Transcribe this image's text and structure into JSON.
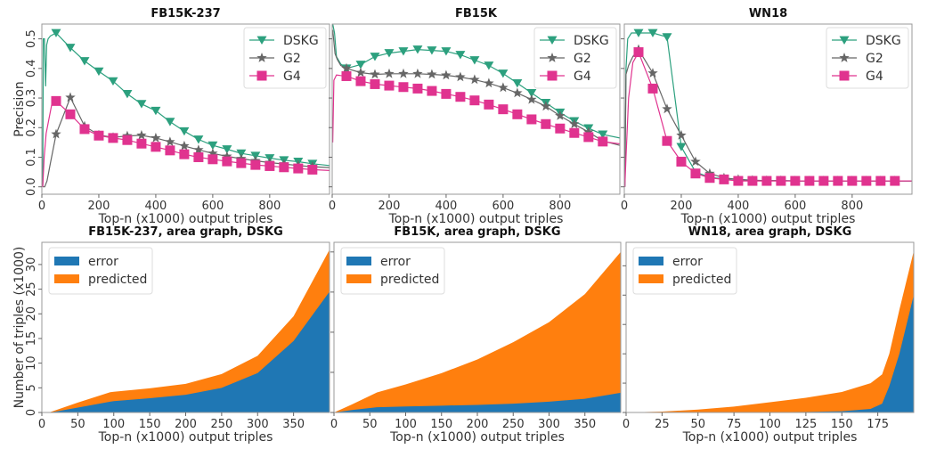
{
  "chart_data": [
    {
      "id": "fb15k237-precision",
      "type": "line",
      "title": "FB15K-237",
      "xlabel": "Top-n (x1000) output triples",
      "ylabel": "Precision",
      "xlim": [
        0,
        1010
      ],
      "ylim": [
        -0.025,
        0.55
      ],
      "xticks": [
        0,
        200,
        400,
        600,
        800
      ],
      "yticks": [
        0.0,
        0.1,
        0.2,
        0.3,
        0.4,
        0.5
      ],
      "show_ytick_labels": true,
      "legend": "top-right",
      "x": [
        50,
        100,
        150,
        200,
        250,
        300,
        350,
        400,
        450,
        500,
        550,
        600,
        650,
        700,
        750,
        800,
        850,
        900,
        950
      ],
      "series": [
        {
          "name": "DSKG",
          "color": "#2ca07e",
          "marker": "triangle-down",
          "lead": [
            [
              3,
              0.0
            ],
            [
              5,
              0.5
            ],
            [
              9,
              0.5
            ],
            [
              13,
              0.34
            ],
            [
              17,
              0.48
            ],
            [
              22,
              0.5
            ],
            [
              30,
              0.51
            ]
          ],
          "values": [
            0.52,
            0.47,
            0.425,
            0.39,
            0.357,
            0.314,
            0.28,
            0.257,
            0.22,
            0.188,
            0.16,
            0.14,
            0.127,
            0.113,
            0.105,
            0.097,
            0.09,
            0.085,
            0.078
          ],
          "tail": 0.072
        },
        {
          "name": "G2",
          "color": "#666666",
          "marker": "star",
          "lead": [
            [
              3,
              0.0
            ],
            [
              10,
              0.0
            ],
            [
              18,
              0.02
            ],
            [
              30,
              0.08
            ]
          ],
          "values": [
            0.178,
            0.302,
            0.205,
            0.175,
            0.167,
            0.172,
            0.174,
            0.165,
            0.152,
            0.138,
            0.125,
            0.113,
            0.103,
            0.095,
            0.088,
            0.082,
            0.077,
            0.072,
            0.068
          ],
          "tail": 0.065
        },
        {
          "name": "G4",
          "color": "#e0338f",
          "marker": "square",
          "lead": [
            [
              3,
              0.0
            ],
            [
              8,
              0.1
            ],
            [
              15,
              0.18
            ],
            [
              25,
              0.23
            ],
            [
              35,
              0.28
            ]
          ],
          "values": [
            0.29,
            0.245,
            0.195,
            0.173,
            0.165,
            0.158,
            0.146,
            0.135,
            0.123,
            0.11,
            0.1,
            0.093,
            0.086,
            0.08,
            0.074,
            0.07,
            0.066,
            0.062,
            0.058
          ],
          "tail": 0.055
        }
      ]
    },
    {
      "id": "fb15k-precision",
      "type": "line",
      "title": "FB15K",
      "xlabel": "Top-n (x1000) output triples",
      "ylabel": "",
      "xlim": [
        0,
        1010
      ],
      "ylim": [
        -0.025,
        0.55
      ],
      "xticks": [
        0,
        200,
        400,
        600,
        800
      ],
      "yticks": [
        0.0,
        0.1,
        0.2,
        0.3,
        0.4,
        0.5
      ],
      "show_ytick_labels": false,
      "legend": "top-right",
      "x": [
        50,
        100,
        150,
        200,
        250,
        300,
        350,
        400,
        450,
        500,
        550,
        600,
        650,
        700,
        750,
        800,
        850,
        900,
        950
      ],
      "series": [
        {
          "name": "DSKG",
          "color": "#2ca07e",
          "marker": "triangle-down",
          "lead": [
            [
              2,
              0.55
            ],
            [
              8,
              0.52
            ],
            [
              15,
              0.44
            ],
            [
              30,
              0.415
            ]
          ],
          "values": [
            0.4,
            0.413,
            0.44,
            0.452,
            0.458,
            0.464,
            0.461,
            0.458,
            0.446,
            0.428,
            0.41,
            0.383,
            0.35,
            0.317,
            0.284,
            0.251,
            0.222,
            0.198,
            0.177
          ],
          "tail": 0.165
        },
        {
          "name": "G2",
          "color": "#666666",
          "marker": "star",
          "lead": [
            [
              2,
              0.53
            ],
            [
              10,
              0.45
            ],
            [
              18,
              0.43
            ],
            [
              30,
              0.41
            ]
          ],
          "values": [
            0.4,
            0.386,
            0.38,
            0.382,
            0.382,
            0.382,
            0.38,
            0.377,
            0.371,
            0.362,
            0.35,
            0.335,
            0.317,
            0.295,
            0.272,
            0.24,
            0.212,
            0.185,
            0.155
          ],
          "tail": 0.14
        },
        {
          "name": "G4",
          "color": "#e0338f",
          "marker": "square",
          "lead": [
            [
              2,
              0.15
            ],
            [
              6,
              0.36
            ],
            [
              15,
              0.378
            ],
            [
              30,
              0.376
            ]
          ],
          "values": [
            0.374,
            0.357,
            0.347,
            0.342,
            0.337,
            0.332,
            0.324,
            0.314,
            0.304,
            0.292,
            0.278,
            0.262,
            0.245,
            0.228,
            0.212,
            0.197,
            0.182,
            0.168,
            0.153
          ],
          "tail": 0.145
        }
      ]
    },
    {
      "id": "wn18-precision",
      "type": "line",
      "title": "WN18",
      "xlabel": "Top-n (x1000) output triples",
      "ylabel": "",
      "xlim": [
        0,
        1010
      ],
      "ylim": [
        -0.025,
        0.55
      ],
      "xticks": [
        0,
        200,
        400,
        600,
        800
      ],
      "yticks": [
        0.0,
        0.1,
        0.2,
        0.3,
        0.4,
        0.5
      ],
      "show_ytick_labels": false,
      "legend": "top-right",
      "x": [
        50,
        100,
        150,
        200,
        250,
        300,
        350,
        400,
        450,
        500,
        550,
        600,
        650,
        700,
        750,
        800,
        850,
        900,
        950
      ],
      "series": [
        {
          "name": "DSKG",
          "color": "#2ca07e",
          "marker": "triangle-down",
          "lead": [
            [
              2,
              0.0
            ],
            [
              6,
              0.4
            ],
            [
              12,
              0.5
            ],
            [
              25,
              0.52
            ]
          ],
          "values": [
            0.52,
            0.52,
            0.506,
            0.135,
            0.05,
            0.032,
            0.027,
            0.025,
            0.022,
            0.021,
            0.021,
            0.02,
            0.02,
            0.02,
            0.02,
            0.02,
            0.02,
            0.02,
            0.02
          ],
          "tail": 0.02,
          "marker_count": 4
        },
        {
          "name": "G2",
          "color": "#666666",
          "marker": "star",
          "lead": [
            [
              2,
              0.0
            ],
            [
              6,
              0.38
            ],
            [
              15,
              0.41
            ],
            [
              30,
              0.44
            ]
          ],
          "values": [
            0.464,
            0.384,
            0.263,
            0.174,
            0.085,
            0.045,
            0.03,
            0.025,
            0.022,
            0.021,
            0.021,
            0.02,
            0.02,
            0.02,
            0.02,
            0.02,
            0.02,
            0.02,
            0.02
          ],
          "tail": 0.02
        },
        {
          "name": "G4",
          "color": "#e0338f",
          "marker": "square",
          "lead": [
            [
              2,
              0.0
            ],
            [
              6,
              0.1
            ],
            [
              15,
              0.3
            ],
            [
              30,
              0.42
            ]
          ],
          "values": [
            0.455,
            0.332,
            0.155,
            0.085,
            0.045,
            0.03,
            0.025,
            0.02,
            0.02,
            0.02,
            0.02,
            0.02,
            0.02,
            0.02,
            0.02,
            0.02,
            0.02,
            0.02,
            0.02
          ],
          "tail": 0.02
        }
      ]
    },
    {
      "id": "fb15k237-area",
      "type": "area",
      "title": "FB15K-237, area graph, DSKG",
      "xlabel": "Top-n (x1000) output triples",
      "ylabel": "Number of triples  (x1000)",
      "xlim": [
        0,
        400
      ],
      "ylim": [
        0,
        34.5
      ],
      "xticks": [
        0,
        50,
        100,
        150,
        200,
        250,
        300,
        350
      ],
      "yticks": [
        0,
        5,
        10,
        15,
        20,
        25,
        30
      ],
      "show_ytick_labels": true,
      "legend": "top-left",
      "x": [
        0,
        10,
        20,
        50,
        95,
        100,
        150,
        200,
        250,
        300,
        350,
        400
      ],
      "series": [
        {
          "name": "error",
          "color": "#1f77b4",
          "values": [
            0,
            0,
            0.2,
            1.0,
            2.2,
            2.3,
            2.9,
            3.6,
            5.0,
            8.0,
            14.5,
            24.5
          ]
        },
        {
          "name": "predicted",
          "color": "#ff7f0e",
          "values": [
            0,
            0,
            0.5,
            2.0,
            4.1,
            4.2,
            4.9,
            5.8,
            7.8,
            11.5,
            19.5,
            33.0
          ]
        }
      ]
    },
    {
      "id": "fb15k-area",
      "type": "area",
      "title": "FB15K, area graph, DSKG",
      "xlabel": "Top-n (x1000) output triples",
      "ylabel": "",
      "xlim": [
        0,
        400
      ],
      "ylim": [
        0,
        42.4
      ],
      "xticks": [
        0,
        50,
        100,
        150,
        200,
        250,
        300,
        350
      ],
      "yticks": [
        0,
        10,
        20,
        30,
        40
      ],
      "show_ytick_labels": false,
      "legend": "top-left",
      "x": [
        0,
        25,
        60,
        100,
        150,
        200,
        250,
        300,
        350,
        400
      ],
      "series": [
        {
          "name": "error",
          "color": "#1f77b4",
          "values": [
            0,
            0.6,
            1.3,
            1.5,
            1.7,
            1.9,
            2.2,
            2.7,
            3.4,
            4.9
          ]
        },
        {
          "name": "predicted",
          "color": "#ff7f0e",
          "values": [
            0,
            2.0,
            5.0,
            7.0,
            9.8,
            13.2,
            17.5,
            22.5,
            29.5,
            40.0
          ]
        }
      ]
    },
    {
      "id": "wn18-area",
      "type": "area",
      "title": "WN18, area graph, DSKG",
      "xlabel": "Top-n (x1000) output triples",
      "ylabel": "",
      "xlim": [
        0,
        200
      ],
      "ylim": [
        0,
        58
      ],
      "xticks": [
        0,
        25,
        50,
        75,
        100,
        125,
        150,
        175
      ],
      "yticks": [
        0,
        10,
        20,
        30,
        40,
        50
      ],
      "show_ytick_labels": false,
      "legend": "top-left",
      "x": [
        0,
        25,
        50,
        75,
        100,
        125,
        150,
        170,
        178,
        183,
        190,
        200
      ],
      "series": [
        {
          "name": "error",
          "color": "#1f77b4",
          "values": [
            0,
            0,
            0,
            0.05,
            0.1,
            0.2,
            0.4,
            1.2,
            3.0,
            9.0,
            20.0,
            40.0
          ]
        },
        {
          "name": "predicted",
          "color": "#ff7f0e",
          "values": [
            0,
            0.3,
            1.0,
            2.0,
            3.5,
            5.0,
            7.0,
            10.0,
            13.0,
            20.0,
            35.0,
            55.0
          ]
        }
      ]
    }
  ]
}
